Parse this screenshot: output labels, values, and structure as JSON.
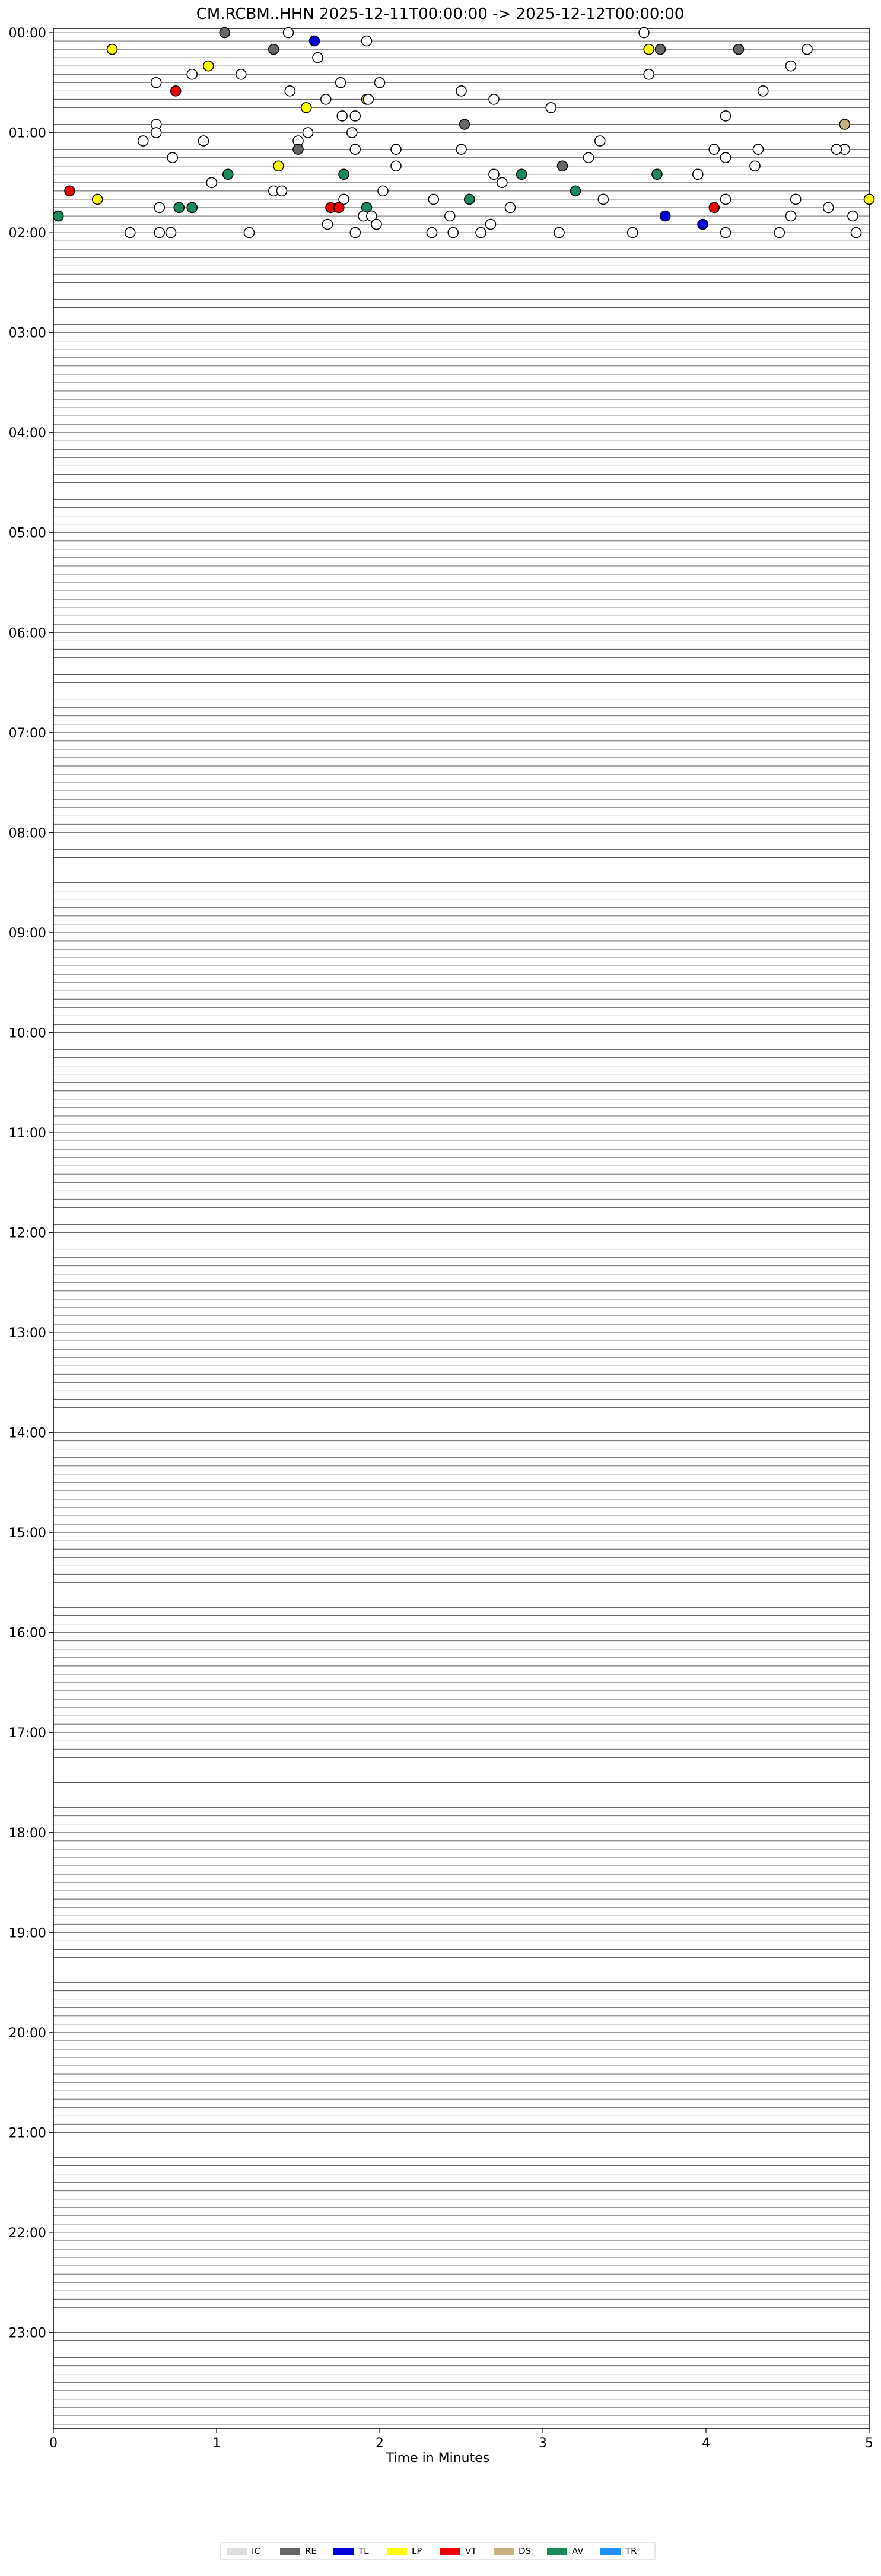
{
  "chart_data": {
    "type": "scatter",
    "title": "CM.RCBM..HHN  2025-12-11T00:00:00 -> 2025-12-12T00:00:00",
    "xlabel": "Time in Minutes",
    "xlim": [
      0,
      5
    ],
    "x_ticks": [
      "0",
      "1",
      "2",
      "3",
      "4",
      "5"
    ],
    "y_ticks": [
      "00:00",
      "01:00",
      "02:00",
      "03:00",
      "04:00",
      "05:00",
      "06:00",
      "07:00",
      "08:00",
      "09:00",
      "10:00",
      "11:00",
      "12:00",
      "13:00",
      "14:00",
      "15:00",
      "16:00",
      "17:00",
      "18:00",
      "19:00",
      "20:00",
      "21:00",
      "22:00",
      "23:00"
    ],
    "rows_per_hour": 12,
    "legend": {
      "placement": "bottom-center",
      "entries": [
        {
          "name": "IC",
          "color": "#dddddd"
        },
        {
          "name": "RE",
          "color": "#666666"
        },
        {
          "name": "TL",
          "color": "#0000dd"
        },
        {
          "name": "LP",
          "color": "#ffff00"
        },
        {
          "name": "VT",
          "color": "#ee0000"
        },
        {
          "name": "DS",
          "color": "#c8b082"
        },
        {
          "name": "AV",
          "color": "#1a8a5a"
        },
        {
          "name": "TR",
          "color": "#1e90ff"
        }
      ]
    },
    "category_colors": {
      "U": "#ffffff",
      "IC": "#dddddd",
      "RE": "#666666",
      "TL": "#0000dd",
      "LP": "#ffff00",
      "VT": "#ee0000",
      "DS": "#c8b082",
      "AV": "#1a8a5a",
      "TR": "#1e90ff"
    },
    "events": [
      {
        "t": "00:00",
        "x": 1.44,
        "c": "U"
      },
      {
        "t": "00:02",
        "x": 1.05,
        "c": "RE"
      },
      {
        "t": "00:02",
        "x": 3.62,
        "c": "U"
      },
      {
        "t": "00:05",
        "x": 1.92,
        "c": "U"
      },
      {
        "t": "00:07",
        "x": 1.6,
        "c": "TL"
      },
      {
        "t": "00:10",
        "x": 0.36,
        "c": "LP"
      },
      {
        "t": "00:10",
        "x": 3.65,
        "c": "LP"
      },
      {
        "t": "00:10",
        "x": 4.2,
        "c": "RE"
      },
      {
        "t": "00:10",
        "x": 4.62,
        "c": "U"
      },
      {
        "t": "00:12",
        "x": 1.35,
        "c": "RE"
      },
      {
        "t": "00:12",
        "x": 3.72,
        "c": "RE"
      },
      {
        "t": "00:15",
        "x": 1.62,
        "c": "U"
      },
      {
        "t": "00:20",
        "x": 0.95,
        "c": "LP"
      },
      {
        "t": "00:22",
        "x": 4.52,
        "c": "U"
      },
      {
        "t": "00:25",
        "x": 1.15,
        "c": "U"
      },
      {
        "t": "00:25",
        "x": 3.65,
        "c": "U"
      },
      {
        "t": "00:27",
        "x": 0.85,
        "c": "U"
      },
      {
        "t": "00:30",
        "x": 2.0,
        "c": "U"
      },
      {
        "t": "00:32",
        "x": 0.63,
        "c": "U"
      },
      {
        "t": "00:32",
        "x": 1.76,
        "c": "U"
      },
      {
        "t": "00:37",
        "x": 0.75,
        "c": "VT"
      },
      {
        "t": "00:35",
        "x": 1.45,
        "c": "U"
      },
      {
        "t": "00:40",
        "x": 1.67,
        "c": "U"
      },
      {
        "t": "00:37",
        "x": 2.5,
        "c": "U"
      },
      {
        "t": "00:37",
        "x": 4.35,
        "c": "U"
      },
      {
        "t": "00:42",
        "x": 1.92,
        "c": "LP"
      },
      {
        "t": "00:42",
        "x": 1.93,
        "c": "U"
      },
      {
        "t": "00:42",
        "x": 2.7,
        "c": "U"
      },
      {
        "t": "00:45",
        "x": 1.55,
        "c": "LP"
      },
      {
        "t": "00:45",
        "x": 3.05,
        "c": "U"
      },
      {
        "t": "00:50",
        "x": 1.85,
        "c": "U"
      },
      {
        "t": "00:50",
        "x": 4.12,
        "c": "U"
      },
      {
        "t": "00:52",
        "x": 1.77,
        "c": "U"
      },
      {
        "t": "00:55",
        "x": 0.63,
        "c": "U"
      },
      {
        "t": "00:57",
        "x": 2.52,
        "c": "RE"
      },
      {
        "t": "00:57",
        "x": 4.85,
        "c": "DS"
      },
      {
        "t": "01:00",
        "x": 0.63,
        "c": "U"
      },
      {
        "t": "01:02",
        "x": 1.83,
        "c": "U"
      },
      {
        "t": "01:02",
        "x": 1.56,
        "c": "U"
      },
      {
        "t": "01:05",
        "x": 3.35,
        "c": "U"
      },
      {
        "t": "01:07",
        "x": 0.55,
        "c": "U"
      },
      {
        "t": "01:07",
        "x": 0.92,
        "c": "U"
      },
      {
        "t": "01:07",
        "x": 1.5,
        "c": "U"
      },
      {
        "t": "01:10",
        "x": 4.05,
        "c": "U"
      },
      {
        "t": "01:10",
        "x": 4.85,
        "c": "U"
      },
      {
        "t": "01:12",
        "x": 1.5,
        "c": "RE"
      },
      {
        "t": "01:12",
        "x": 1.85,
        "c": "U"
      },
      {
        "t": "01:12",
        "x": 2.1,
        "c": "U"
      },
      {
        "t": "01:12",
        "x": 2.5,
        "c": "U"
      },
      {
        "t": "01:12",
        "x": 4.32,
        "c": "U"
      },
      {
        "t": "01:12",
        "x": 4.8,
        "c": "U"
      },
      {
        "t": "01:15",
        "x": 0.73,
        "c": "U"
      },
      {
        "t": "01:17",
        "x": 3.28,
        "c": "U"
      },
      {
        "t": "01:17",
        "x": 4.12,
        "c": "U"
      },
      {
        "t": "01:20",
        "x": 1.38,
        "c": "LP"
      },
      {
        "t": "01:20",
        "x": 3.12,
        "c": "RE"
      },
      {
        "t": "01:20",
        "x": 4.3,
        "c": "U"
      },
      {
        "t": "01:22",
        "x": 2.1,
        "c": "U"
      },
      {
        "t": "01:25",
        "x": 3.95,
        "c": "U"
      },
      {
        "t": "01:25",
        "x": 2.87,
        "c": "AV"
      },
      {
        "t": "01:27",
        "x": 1.07,
        "c": "AV"
      },
      {
        "t": "01:27",
        "x": 1.78,
        "c": "AV"
      },
      {
        "t": "01:27",
        "x": 2.7,
        "c": "U"
      },
      {
        "t": "01:27",
        "x": 3.7,
        "c": "AV"
      },
      {
        "t": "01:30",
        "x": 2.75,
        "c": "U"
      },
      {
        "t": "01:32",
        "x": 0.97,
        "c": "U"
      },
      {
        "t": "01:35",
        "x": 1.35,
        "c": "U"
      },
      {
        "t": "01:35",
        "x": 2.02,
        "c": "U"
      },
      {
        "t": "01:35",
        "x": 1.4,
        "c": "U"
      },
      {
        "t": "01:37",
        "x": 0.1,
        "c": "VT"
      },
      {
        "t": "01:37",
        "x": 3.2,
        "c": "AV"
      },
      {
        "t": "01:40",
        "x": 0.27,
        "c": "LP"
      },
      {
        "t": "01:40",
        "x": 2.33,
        "c": "U"
      },
      {
        "t": "01:40",
        "x": 3.37,
        "c": "U"
      },
      {
        "t": "01:40",
        "x": 4.55,
        "c": "U"
      },
      {
        "t": "01:40",
        "x": 5.0,
        "c": "LP"
      },
      {
        "t": "01:42",
        "x": 1.78,
        "c": "U"
      },
      {
        "t": "01:42",
        "x": 4.12,
        "c": "U"
      },
      {
        "t": "01:42",
        "x": 2.55,
        "c": "AV"
      },
      {
        "t": "01:45",
        "x": 0.65,
        "c": "U"
      },
      {
        "t": "01:45",
        "x": 2.8,
        "c": "U"
      },
      {
        "t": "01:45",
        "x": 4.75,
        "c": "U"
      },
      {
        "t": "01:45",
        "x": 0.77,
        "c": "AV"
      },
      {
        "t": "01:45",
        "x": 1.7,
        "c": "VT"
      },
      {
        "t": "01:45",
        "x": 1.75,
        "c": "VT"
      },
      {
        "t": "01:47",
        "x": 0.85,
        "c": "AV"
      },
      {
        "t": "01:47",
        "x": 1.92,
        "c": "AV"
      },
      {
        "t": "01:45",
        "x": 4.05,
        "c": "VT"
      },
      {
        "t": "01:50",
        "x": 0.03,
        "c": "AV"
      },
      {
        "t": "01:50",
        "x": 1.9,
        "c": "U"
      },
      {
        "t": "01:50",
        "x": 2.43,
        "c": "U"
      },
      {
        "t": "01:50",
        "x": 4.9,
        "c": "U"
      },
      {
        "t": "01:52",
        "x": 3.75,
        "c": "TL"
      },
      {
        "t": "01:52",
        "x": 1.95,
        "c": "U"
      },
      {
        "t": "01:52",
        "x": 4.52,
        "c": "U"
      },
      {
        "t": "01:55",
        "x": 1.68,
        "c": "U"
      },
      {
        "t": "01:55",
        "x": 2.68,
        "c": "U"
      },
      {
        "t": "01:57",
        "x": 3.98,
        "c": "TL"
      },
      {
        "t": "01:57",
        "x": 1.98,
        "c": "U"
      },
      {
        "t": "02:00",
        "x": 0.47,
        "c": "U"
      },
      {
        "t": "02:00",
        "x": 0.65,
        "c": "U"
      },
      {
        "t": "02:00",
        "x": 1.2,
        "c": "U"
      },
      {
        "t": "02:00",
        "x": 1.85,
        "c": "U"
      },
      {
        "t": "02:00",
        "x": 2.32,
        "c": "U"
      },
      {
        "t": "02:00",
        "x": 2.45,
        "c": "U"
      },
      {
        "t": "02:00",
        "x": 3.1,
        "c": "U"
      },
      {
        "t": "02:00",
        "x": 3.55,
        "c": "U"
      },
      {
        "t": "02:00",
        "x": 4.12,
        "c": "U"
      },
      {
        "t": "02:00",
        "x": 4.45,
        "c": "U"
      },
      {
        "t": "02:02",
        "x": 0.72,
        "c": "U"
      },
      {
        "t": "02:02",
        "x": 2.62,
        "c": "U"
      },
      {
        "t": "02:02",
        "x": 4.92,
        "c": "U"
      }
    ]
  }
}
